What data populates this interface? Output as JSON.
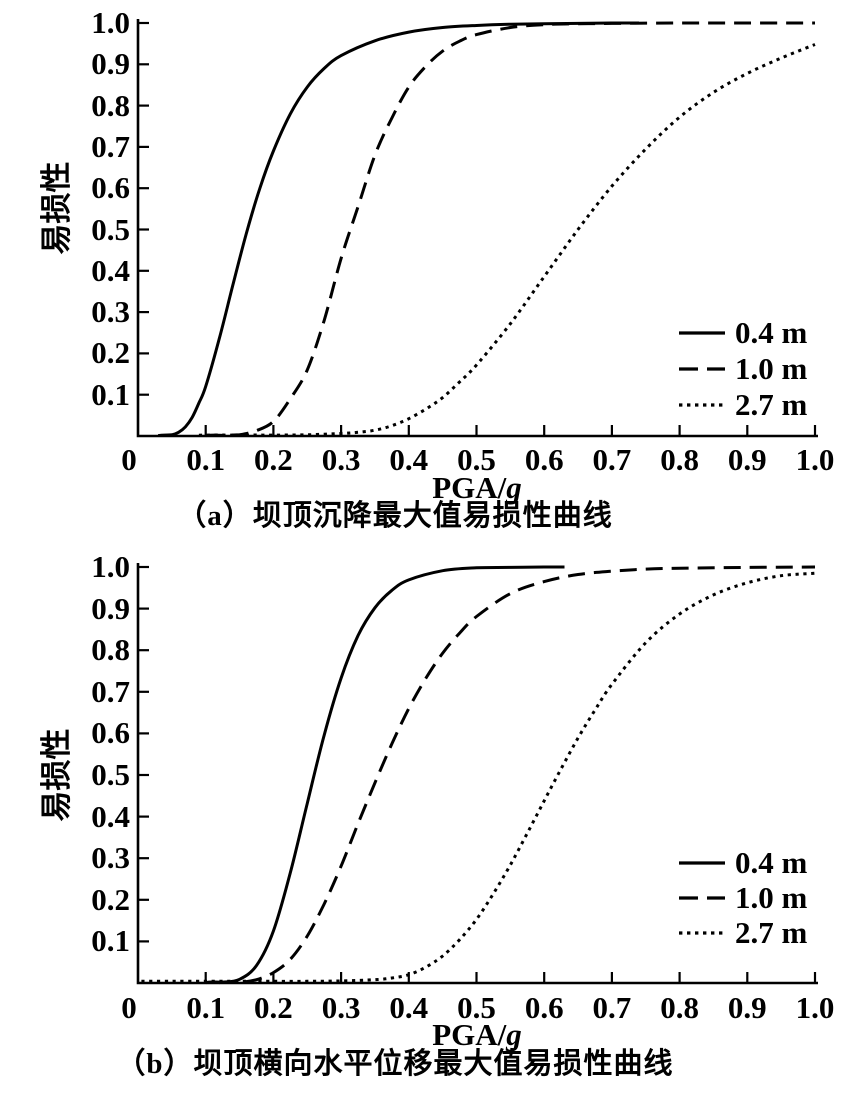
{
  "figure": {
    "background": "#ffffff",
    "ink": "#000000"
  },
  "chart_data": [
    {
      "type": "line",
      "panel": "a",
      "title": "（a）坝顶沉降最大值易损性曲线",
      "xlabel_prefix": "PGA/",
      "xlabel_italic": "g",
      "ylabel": "易损性",
      "xlim": [
        0,
        1.0
      ],
      "ylim": [
        0,
        1.0
      ],
      "grid": false,
      "legend_position": "lower right",
      "x_tick_values": [
        0,
        0.1,
        0.2,
        0.3,
        0.4,
        0.5,
        0.6,
        0.7,
        0.8,
        0.9,
        1.0
      ],
      "x_tick_labels": [
        "0",
        "0.1",
        "0.2",
        "0.3",
        "0.4",
        "0.5",
        "0.6",
        "0.7",
        "0.8",
        "0.9",
        "1.0"
      ],
      "y_tick_values": [
        0.1,
        0.2,
        0.3,
        0.4,
        0.5,
        0.6,
        0.7,
        0.8,
        0.9,
        1.0
      ],
      "y_tick_labels": [
        "0.1",
        "0.2",
        "0.3",
        "0.4",
        "0.5",
        "0.6",
        "0.7",
        "0.8",
        "0.9",
        "1.0"
      ],
      "series": [
        {
          "name": "0.4 m",
          "style": "solid",
          "points": [
            [
              0.03,
              0.001
            ],
            [
              0.05,
              0.003
            ],
            [
              0.06,
              0.009
            ],
            [
              0.07,
              0.022
            ],
            [
              0.08,
              0.045
            ],
            [
              0.09,
              0.08
            ],
            [
              0.1,
              0.12
            ],
            [
              0.12,
              0.235
            ],
            [
              0.14,
              0.365
            ],
            [
              0.16,
              0.49
            ],
            [
              0.18,
              0.6
            ],
            [
              0.2,
              0.69
            ],
            [
              0.225,
              0.78
            ],
            [
              0.25,
              0.845
            ],
            [
              0.275,
              0.89
            ],
            [
              0.3,
              0.921
            ],
            [
              0.35,
              0.957
            ],
            [
              0.4,
              0.978
            ],
            [
              0.45,
              0.989
            ],
            [
              0.5,
              0.994
            ],
            [
              0.55,
              0.997
            ],
            [
              0.6,
              0.998
            ],
            [
              0.65,
              0.999
            ],
            [
              0.7,
              1.0
            ],
            [
              0.74,
              1.0
            ]
          ]
        },
        {
          "name": "1.0 m",
          "style": "dashed",
          "points": [
            [
              0.1,
              0.001
            ],
            [
              0.13,
              0.001
            ],
            [
              0.15,
              0.003
            ],
            [
              0.175,
              0.013
            ],
            [
              0.2,
              0.035
            ],
            [
              0.225,
              0.09
            ],
            [
              0.25,
              0.16
            ],
            [
              0.275,
              0.28
            ],
            [
              0.3,
              0.43
            ],
            [
              0.325,
              0.555
            ],
            [
              0.35,
              0.68
            ],
            [
              0.375,
              0.77
            ],
            [
              0.4,
              0.845
            ],
            [
              0.425,
              0.895
            ],
            [
              0.45,
              0.932
            ],
            [
              0.475,
              0.956
            ],
            [
              0.5,
              0.972
            ],
            [
              0.55,
              0.989
            ],
            [
              0.6,
              0.996
            ],
            [
              0.65,
              0.998
            ],
            [
              0.7,
              0.999
            ],
            [
              0.8,
              1.0
            ],
            [
              0.9,
              1.0
            ],
            [
              1.0,
              1.0
            ]
          ]
        },
        {
          "name": "2.7 m",
          "style": "dotted",
          "points": [
            [
              0.09,
              0.002
            ],
            [
              0.15,
              0.002
            ],
            [
              0.2,
              0.002
            ],
            [
              0.25,
              0.003
            ],
            [
              0.3,
              0.006
            ],
            [
              0.325,
              0.009
            ],
            [
              0.35,
              0.014
            ],
            [
              0.375,
              0.025
            ],
            [
              0.4,
              0.042
            ],
            [
              0.425,
              0.065
            ],
            [
              0.45,
              0.093
            ],
            [
              0.475,
              0.131
            ],
            [
              0.5,
              0.172
            ],
            [
              0.55,
              0.272
            ],
            [
              0.6,
              0.386
            ],
            [
              0.65,
              0.5
            ],
            [
              0.7,
              0.605
            ],
            [
              0.75,
              0.695
            ],
            [
              0.8,
              0.772
            ],
            [
              0.85,
              0.832
            ],
            [
              0.9,
              0.878
            ],
            [
              0.95,
              0.915
            ],
            [
              1.0,
              0.948
            ]
          ]
        }
      ]
    },
    {
      "type": "line",
      "panel": "b",
      "title": "（b）坝顶横向水平位移最大值易损性曲线",
      "xlabel_prefix": "PGA/",
      "xlabel_italic": "g",
      "ylabel": "易损性",
      "xlim": [
        0,
        1.0
      ],
      "ylim": [
        0,
        1.0
      ],
      "grid": false,
      "legend_position": "lower right",
      "x_tick_values": [
        0,
        0.1,
        0.2,
        0.3,
        0.4,
        0.5,
        0.6,
        0.7,
        0.8,
        0.9,
        1.0
      ],
      "x_tick_labels": [
        "0",
        "0.1",
        "0.2",
        "0.3",
        "0.4",
        "0.5",
        "0.6",
        "0.7",
        "0.8",
        "0.9",
        "1.0"
      ],
      "y_tick_values": [
        0.1,
        0.2,
        0.3,
        0.4,
        0.5,
        0.6,
        0.7,
        0.8,
        0.9,
        1.0
      ],
      "y_tick_labels": [
        "0.1",
        "0.2",
        "0.3",
        "0.4",
        "0.5",
        "0.6",
        "0.7",
        "0.8",
        "0.9",
        "1.0"
      ],
      "series": [
        {
          "name": "0.4 m",
          "style": "solid",
          "points": [
            [
              0.1,
              0.001
            ],
            [
              0.125,
              0.002
            ],
            [
              0.15,
              0.009
            ],
            [
              0.175,
              0.042
            ],
            [
              0.2,
              0.125
            ],
            [
              0.225,
              0.265
            ],
            [
              0.25,
              0.432
            ],
            [
              0.275,
              0.596
            ],
            [
              0.3,
              0.733
            ],
            [
              0.325,
              0.835
            ],
            [
              0.35,
              0.902
            ],
            [
              0.375,
              0.944
            ],
            [
              0.4,
              0.969
            ],
            [
              0.45,
              0.991
            ],
            [
              0.5,
              0.998
            ],
            [
              0.55,
              0.999
            ],
            [
              0.6,
              1.0
            ],
            [
              0.63,
              1.0
            ]
          ]
        },
        {
          "name": "1.0 m",
          "style": "dashed",
          "points": [
            [
              0.12,
              0.001
            ],
            [
              0.15,
              0.002
            ],
            [
              0.175,
              0.008
            ],
            [
              0.2,
              0.025
            ],
            [
              0.225,
              0.057
            ],
            [
              0.25,
              0.113
            ],
            [
              0.275,
              0.19
            ],
            [
              0.3,
              0.281
            ],
            [
              0.325,
              0.383
            ],
            [
              0.35,
              0.481
            ],
            [
              0.375,
              0.575
            ],
            [
              0.4,
              0.66
            ],
            [
              0.425,
              0.732
            ],
            [
              0.45,
              0.793
            ],
            [
              0.475,
              0.841
            ],
            [
              0.5,
              0.881
            ],
            [
              0.55,
              0.936
            ],
            [
              0.6,
              0.965
            ],
            [
              0.65,
              0.982
            ],
            [
              0.7,
              0.99
            ],
            [
              0.75,
              0.995
            ],
            [
              0.8,
              0.997
            ],
            [
              0.9,
              0.999
            ],
            [
              1.0,
              1.0
            ]
          ]
        },
        {
          "name": "2.7 m",
          "style": "dotted",
          "points": [
            [
              0.005,
              0.004
            ],
            [
              0.05,
              0.004
            ],
            [
              0.1,
              0.004
            ],
            [
              0.15,
              0.004
            ],
            [
              0.2,
              0.004
            ],
            [
              0.25,
              0.004
            ],
            [
              0.3,
              0.005
            ],
            [
              0.35,
              0.008
            ],
            [
              0.375,
              0.012
            ],
            [
              0.4,
              0.02
            ],
            [
              0.425,
              0.038
            ],
            [
              0.45,
              0.065
            ],
            [
              0.475,
              0.104
            ],
            [
              0.5,
              0.153
            ],
            [
              0.525,
              0.215
            ],
            [
              0.55,
              0.284
            ],
            [
              0.575,
              0.36
            ],
            [
              0.6,
              0.438
            ],
            [
              0.625,
              0.515
            ],
            [
              0.65,
              0.589
            ],
            [
              0.675,
              0.656
            ],
            [
              0.7,
              0.718
            ],
            [
              0.75,
              0.818
            ],
            [
              0.8,
              0.887
            ],
            [
              0.85,
              0.933
            ],
            [
              0.9,
              0.962
            ],
            [
              0.95,
              0.979
            ],
            [
              1.0,
              0.985
            ]
          ]
        }
      ]
    }
  ]
}
